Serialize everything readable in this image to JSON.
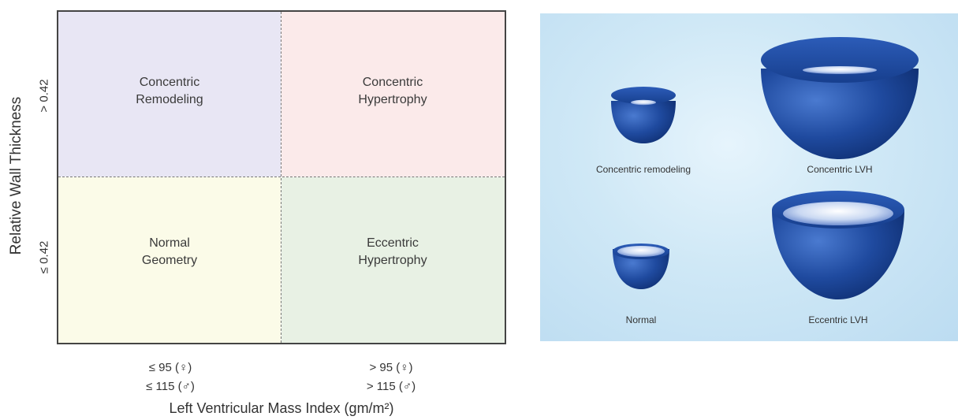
{
  "quadrant_chart": {
    "quadrants": {
      "top_left": "Concentric\nRemodeling",
      "top_right": "Concentric\nHypertrophy",
      "bottom_left": "Normal\nGeometry",
      "bottom_right": "Eccentric\nHypertrophy"
    },
    "y_axis": {
      "title": "Relative Wall Thickness",
      "upper_label": "> 0.42",
      "lower_label": "≤ 0.42"
    },
    "x_axis": {
      "title": "Left Ventricular Mass Index (gm/m²)",
      "left_female": "≤ 95 (♀)",
      "left_male": "≤ 115 (♂)",
      "right_female": "> 95 (♀)",
      "right_male": "> 115 (♂)"
    },
    "colors": {
      "top_left": "#e8e6f4",
      "top_right": "#fbeaea",
      "bottom_left": "#fbfbe8",
      "bottom_right": "#e8f1e4"
    }
  },
  "illustration": {
    "labels": {
      "concentric_remodeling": "Concentric remodeling",
      "concentric_lvh": "Concentric LVH",
      "normal": "Normal",
      "eccentric_lvh": "Eccentric LVH"
    },
    "colors": {
      "heart_dark": "#1a3f8f",
      "heart_light": "#3f6fc8",
      "panel_bg": "#cfe8f6"
    }
  }
}
